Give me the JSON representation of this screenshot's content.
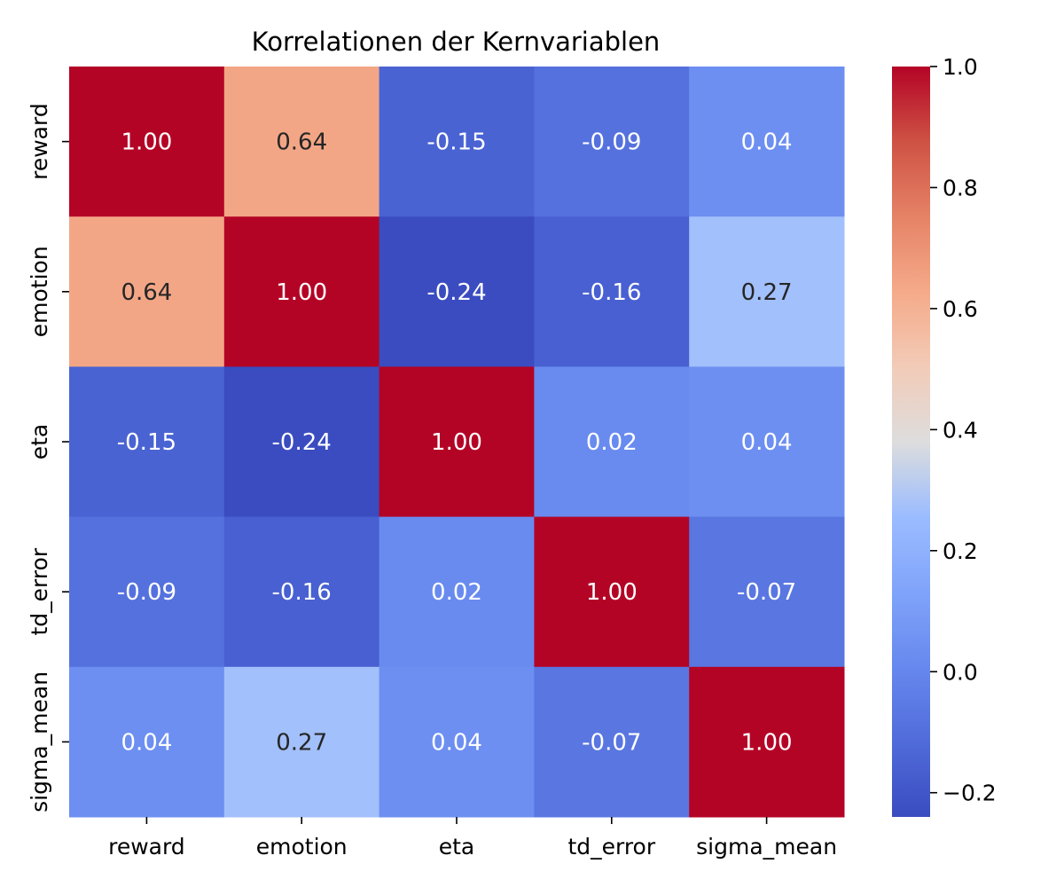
{
  "chart_data": {
    "type": "heatmap",
    "title": "Korrelationen der Kernvariablen",
    "xlabel": "",
    "ylabel": "",
    "x_categories": [
      "reward",
      "emotion",
      "eta",
      "td_error",
      "sigma_mean"
    ],
    "y_categories": [
      "reward",
      "emotion",
      "eta",
      "td_error",
      "sigma_mean"
    ],
    "values": [
      [
        1.0,
        0.64,
        -0.15,
        -0.09,
        0.04
      ],
      [
        0.64,
        1.0,
        -0.24,
        -0.16,
        0.27
      ],
      [
        -0.15,
        -0.24,
        1.0,
        0.02,
        0.04
      ],
      [
        -0.09,
        -0.16,
        0.02,
        1.0,
        -0.07
      ],
      [
        0.04,
        0.27,
        0.04,
        -0.07,
        1.0
      ]
    ],
    "value_format": "0.00",
    "colormap": "coolwarm",
    "vmin": -0.24,
    "vmax": 1.0,
    "colorbar": {
      "ticks": [
        -0.2,
        0.0,
        0.2,
        0.4,
        0.6,
        0.8,
        1.0
      ],
      "tick_labels": [
        "−0.2",
        "0.0",
        "0.2",
        "0.4",
        "0.6",
        "0.8",
        "1.0"
      ]
    }
  }
}
